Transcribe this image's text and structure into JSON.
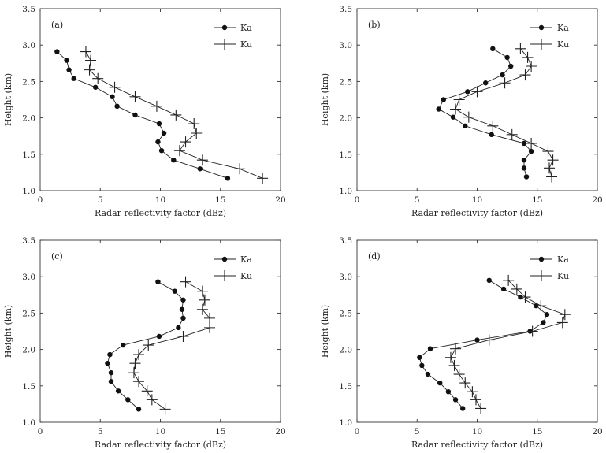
{
  "chart_data": [
    {
      "type": "line",
      "panel": "(a)",
      "xlabel": "Radar reflectivity factor (dBz)",
      "ylabel": "Height (km)",
      "xlim": [
        0,
        20
      ],
      "ylim": [
        1.0,
        3.5
      ],
      "xticks": [
        "0",
        "5",
        "10",
        "15",
        "20"
      ],
      "yticks": [
        "1.0",
        "1.5",
        "2.0",
        "2.5",
        "3.0",
        "3.5"
      ],
      "legend_position": "top-right",
      "series": [
        {
          "name": "Ka",
          "marker": "dot",
          "points": [
            [
              1.4,
              2.91
            ],
            [
              2.2,
              2.79
            ],
            [
              2.4,
              2.66
            ],
            [
              2.8,
              2.54
            ],
            [
              4.6,
              2.42
            ],
            [
              6.0,
              2.29
            ],
            [
              6.4,
              2.16
            ],
            [
              7.9,
              2.04
            ],
            [
              9.9,
              1.92
            ],
            [
              10.3,
              1.79
            ],
            [
              9.8,
              1.67
            ],
            [
              10.1,
              1.55
            ],
            [
              11.1,
              1.42
            ],
            [
              13.3,
              1.3
            ],
            [
              15.6,
              1.17
            ]
          ]
        },
        {
          "name": "Ku",
          "marker": "plus",
          "points": [
            [
              3.8,
              2.91
            ],
            [
              4.2,
              2.79
            ],
            [
              4.1,
              2.66
            ],
            [
              4.8,
              2.54
            ],
            [
              6.2,
              2.42
            ],
            [
              7.9,
              2.29
            ],
            [
              9.7,
              2.16
            ],
            [
              11.3,
              2.04
            ],
            [
              12.8,
              1.92
            ],
            [
              13.0,
              1.79
            ],
            [
              12.1,
              1.67
            ],
            [
              11.6,
              1.55
            ],
            [
              13.5,
              1.42
            ],
            [
              16.6,
              1.3
            ],
            [
              18.5,
              1.17
            ]
          ]
        }
      ]
    },
    {
      "type": "line",
      "panel": "(b)",
      "xlabel": "Radar reflectivity factor (dBz)",
      "ylabel": "Height (km)",
      "xlim": [
        0,
        20
      ],
      "ylim": [
        1.0,
        3.5
      ],
      "xticks": [
        "0",
        "5",
        "10",
        "15",
        "20"
      ],
      "yticks": [
        "1.0",
        "1.5",
        "2.0",
        "2.5",
        "3.0",
        "3.5"
      ],
      "legend_position": "top-right",
      "series": [
        {
          "name": "Ka",
          "marker": "dot",
          "points": [
            [
              11.3,
              2.95
            ],
            [
              12.5,
              2.83
            ],
            [
              12.8,
              2.71
            ],
            [
              12.1,
              2.59
            ],
            [
              10.7,
              2.48
            ],
            [
              9.2,
              2.36
            ],
            [
              7.2,
              2.25
            ],
            [
              6.8,
              2.12
            ],
            [
              8.0,
              2.01
            ],
            [
              9.0,
              1.89
            ],
            [
              11.2,
              1.77
            ],
            [
              13.9,
              1.65
            ],
            [
              14.5,
              1.54
            ],
            [
              13.9,
              1.42
            ],
            [
              13.9,
              1.31
            ],
            [
              14.1,
              1.19
            ]
          ]
        },
        {
          "name": "Ku",
          "marker": "plus",
          "points": [
            [
              13.6,
              2.95
            ],
            [
              14.2,
              2.83
            ],
            [
              14.5,
              2.71
            ],
            [
              14.0,
              2.59
            ],
            [
              12.3,
              2.48
            ],
            [
              10.0,
              2.36
            ],
            [
              8.5,
              2.25
            ],
            [
              8.2,
              2.12
            ],
            [
              9.3,
              2.01
            ],
            [
              11.3,
              1.89
            ],
            [
              12.9,
              1.77
            ],
            [
              14.5,
              1.65
            ],
            [
              15.9,
              1.54
            ],
            [
              16.3,
              1.42
            ],
            [
              16.0,
              1.31
            ],
            [
              16.2,
              1.19
            ]
          ]
        }
      ]
    },
    {
      "type": "line",
      "panel": "(c)",
      "xlabel": "Radar reflectivity factor (dBz)",
      "ylabel": "Height (km)",
      "xlim": [
        0,
        20
      ],
      "ylim": [
        1.0,
        3.5
      ],
      "xticks": [
        "0",
        "5",
        "10",
        "15",
        "20"
      ],
      "yticks": [
        "1.0",
        "1.5",
        "2.0",
        "2.5",
        "3.0",
        "3.5"
      ],
      "legend_position": "top-right",
      "series": [
        {
          "name": "Ka",
          "marker": "dot",
          "points": [
            [
              9.8,
              2.93
            ],
            [
              11.2,
              2.8
            ],
            [
              11.9,
              2.68
            ],
            [
              11.8,
              2.55
            ],
            [
              11.9,
              2.43
            ],
            [
              11.5,
              2.3
            ],
            [
              9.9,
              2.18
            ],
            [
              6.9,
              2.06
            ],
            [
              5.8,
              1.93
            ],
            [
              5.6,
              1.81
            ],
            [
              5.9,
              1.68
            ],
            [
              5.9,
              1.56
            ],
            [
              6.5,
              1.43
            ],
            [
              7.3,
              1.31
            ],
            [
              8.2,
              1.18
            ]
          ]
        },
        {
          "name": "Ku",
          "marker": "plus",
          "points": [
            [
              12.1,
              2.93
            ],
            [
              13.5,
              2.8
            ],
            [
              13.7,
              2.68
            ],
            [
              13.5,
              2.55
            ],
            [
              14.1,
              2.43
            ],
            [
              14.1,
              2.3
            ],
            [
              11.9,
              2.18
            ],
            [
              9.0,
              2.06
            ],
            [
              8.2,
              1.93
            ],
            [
              7.9,
              1.81
            ],
            [
              7.8,
              1.68
            ],
            [
              8.2,
              1.56
            ],
            [
              8.9,
              1.43
            ],
            [
              9.3,
              1.31
            ],
            [
              10.4,
              1.18
            ]
          ]
        }
      ]
    },
    {
      "type": "line",
      "panel": "(d)",
      "xlabel": "Radar reflectivity factor (dBz)",
      "ylabel": "Height (km)",
      "xlim": [
        0,
        20
      ],
      "ylim": [
        1.0,
        3.5
      ],
      "xticks": [
        "0",
        "5",
        "10",
        "15",
        "20"
      ],
      "yticks": [
        "1.0",
        "1.5",
        "2.0",
        "2.5",
        "3.0",
        "3.5"
      ],
      "legend_position": "top-right",
      "series": [
        {
          "name": "Ka",
          "marker": "dot",
          "points": [
            [
              11.0,
              2.95
            ],
            [
              12.2,
              2.83
            ],
            [
              13.6,
              2.72
            ],
            [
              14.9,
              2.6
            ],
            [
              15.8,
              2.48
            ],
            [
              15.5,
              2.37
            ],
            [
              14.4,
              2.25
            ],
            [
              10.0,
              2.13
            ],
            [
              6.1,
              2.01
            ],
            [
              5.2,
              1.89
            ],
            [
              5.4,
              1.78
            ],
            [
              5.9,
              1.66
            ],
            [
              6.9,
              1.54
            ],
            [
              7.6,
              1.42
            ],
            [
              8.2,
              1.31
            ],
            [
              8.8,
              1.19
            ]
          ]
        },
        {
          "name": "Ku",
          "marker": "plus",
          "points": [
            [
              12.6,
              2.95
            ],
            [
              13.3,
              2.83
            ],
            [
              14.0,
              2.72
            ],
            [
              15.3,
              2.6
            ],
            [
              17.3,
              2.48
            ],
            [
              17.1,
              2.37
            ],
            [
              14.6,
              2.25
            ],
            [
              11.0,
              2.13
            ],
            [
              8.2,
              2.01
            ],
            [
              7.8,
              1.89
            ],
            [
              8.1,
              1.78
            ],
            [
              8.5,
              1.66
            ],
            [
              9.0,
              1.54
            ],
            [
              9.6,
              1.42
            ],
            [
              9.9,
              1.31
            ],
            [
              10.3,
              1.19
            ]
          ]
        }
      ]
    }
  ]
}
